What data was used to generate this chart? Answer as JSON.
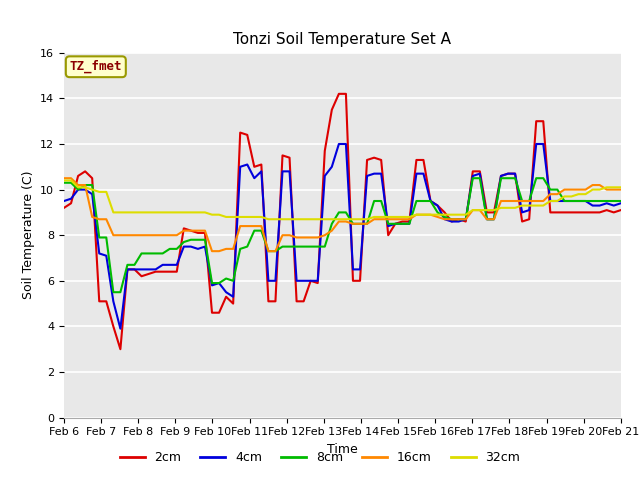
{
  "title": "Tonzi Soil Temperature Set A",
  "xlabel": "Time",
  "ylabel": "Soil Temperature (C)",
  "annotation": "TZ_fmet",
  "ylim": [
    0,
    16
  ],
  "yticks": [
    0,
    2,
    4,
    6,
    8,
    10,
    12,
    14,
    16
  ],
  "colors": {
    "2cm": "#dd0000",
    "4cm": "#0000dd",
    "8cm": "#00bb00",
    "16cm": "#ff8800",
    "32cm": "#dddd00"
  },
  "plot_bg": "#e8e8e8",
  "fig_bg": "#ffffff",
  "x_labels": [
    "Feb 6",
    "Feb 7",
    "Feb 8",
    "Feb 9",
    "Feb 10",
    "Feb 11",
    "Feb 12",
    "Feb 13",
    "Feb 14",
    "Feb 15",
    "Feb 16",
    "Feb 17",
    "Feb 18",
    "Feb 19",
    "Feb 20",
    "Feb 21"
  ],
  "series": {
    "2cm": [
      9.2,
      9.4,
      10.6,
      10.8,
      10.5,
      5.1,
      5.1,
      4.0,
      3.0,
      6.5,
      6.5,
      6.2,
      6.3,
      6.4,
      6.4,
      6.4,
      6.4,
      8.3,
      8.2,
      8.1,
      8.1,
      4.6,
      4.6,
      5.3,
      5.0,
      12.5,
      12.4,
      11.0,
      11.1,
      5.1,
      5.1,
      11.5,
      11.4,
      5.1,
      5.1,
      6.0,
      5.9,
      11.7,
      13.5,
      14.2,
      14.2,
      6.0,
      6.0,
      11.3,
      11.4,
      11.3,
      8.0,
      8.5,
      8.6,
      8.6,
      11.3,
      11.3,
      9.5,
      9.3,
      9.0,
      8.6,
      8.7,
      8.6,
      10.8,
      10.8,
      9.0,
      9.0,
      10.6,
      10.7,
      10.7,
      8.6,
      8.7,
      13.0,
      13.0,
      9.0,
      9.0,
      9.0,
      9.0,
      9.0,
      9.0,
      9.0,
      9.0,
      9.1,
      9.0,
      9.1
    ],
    "4cm": [
      9.5,
      9.6,
      10.0,
      10.0,
      9.8,
      7.2,
      7.1,
      5.1,
      3.9,
      6.5,
      6.5,
      6.5,
      6.5,
      6.5,
      6.7,
      6.7,
      6.7,
      7.5,
      7.5,
      7.4,
      7.5,
      5.8,
      5.9,
      5.5,
      5.3,
      11.0,
      11.1,
      10.5,
      10.8,
      6.0,
      6.0,
      10.8,
      10.8,
      6.0,
      6.0,
      6.0,
      6.0,
      10.6,
      11.0,
      12.0,
      12.0,
      6.5,
      6.5,
      10.6,
      10.7,
      10.7,
      8.4,
      8.5,
      8.5,
      8.5,
      10.7,
      10.7,
      9.5,
      9.3,
      8.7,
      8.6,
      8.6,
      8.7,
      10.6,
      10.7,
      8.7,
      8.7,
      10.6,
      10.7,
      10.7,
      9.0,
      9.1,
      12.0,
      12.0,
      9.5,
      9.5,
      9.5,
      9.5,
      9.5,
      9.5,
      9.3,
      9.3,
      9.4,
      9.3,
      9.4
    ],
    "8cm": [
      10.3,
      10.3,
      10.0,
      10.2,
      10.2,
      7.9,
      7.9,
      5.5,
      5.5,
      6.7,
      6.7,
      7.2,
      7.2,
      7.2,
      7.2,
      7.4,
      7.4,
      7.7,
      7.8,
      7.8,
      7.8,
      5.9,
      5.9,
      6.1,
      6.0,
      7.4,
      7.5,
      8.2,
      8.2,
      7.3,
      7.3,
      7.5,
      7.5,
      7.5,
      7.5,
      7.5,
      7.5,
      7.5,
      8.5,
      9.0,
      9.0,
      8.5,
      8.5,
      8.5,
      9.5,
      9.5,
      8.5,
      8.5,
      8.5,
      8.5,
      9.5,
      9.5,
      9.5,
      9.0,
      8.8,
      8.7,
      8.7,
      8.7,
      10.5,
      10.5,
      8.7,
      8.7,
      10.5,
      10.5,
      10.5,
      9.5,
      9.5,
      10.5,
      10.5,
      10.0,
      10.0,
      9.5,
      9.5,
      9.5,
      9.5,
      9.5,
      9.5,
      9.5,
      9.5,
      9.5
    ],
    "16cm": [
      10.5,
      10.5,
      10.2,
      10.2,
      8.8,
      8.7,
      8.7,
      8.0,
      8.0,
      8.0,
      8.0,
      8.0,
      8.0,
      8.0,
      8.0,
      8.0,
      8.0,
      8.2,
      8.2,
      8.2,
      8.2,
      7.3,
      7.3,
      7.4,
      7.4,
      8.4,
      8.4,
      8.4,
      8.4,
      7.3,
      7.3,
      8.0,
      8.0,
      7.9,
      7.9,
      7.9,
      7.9,
      8.0,
      8.2,
      8.6,
      8.6,
      8.5,
      8.5,
      8.5,
      8.7,
      8.7,
      8.7,
      8.7,
      8.7,
      8.7,
      8.9,
      8.9,
      8.9,
      8.8,
      8.7,
      8.7,
      8.7,
      8.7,
      9.1,
      9.1,
      8.7,
      8.7,
      9.5,
      9.5,
      9.5,
      9.5,
      9.5,
      9.5,
      9.5,
      9.8,
      9.8,
      10.0,
      10.0,
      10.0,
      10.0,
      10.2,
      10.2,
      10.0,
      10.0,
      10.0
    ],
    "32cm": [
      10.4,
      10.4,
      10.1,
      10.1,
      10.0,
      9.9,
      9.9,
      9.0,
      9.0,
      9.0,
      9.0,
      9.0,
      9.0,
      9.0,
      9.0,
      9.0,
      9.0,
      9.0,
      9.0,
      9.0,
      9.0,
      8.9,
      8.9,
      8.8,
      8.8,
      8.8,
      8.8,
      8.8,
      8.8,
      8.7,
      8.7,
      8.7,
      8.7,
      8.7,
      8.7,
      8.7,
      8.7,
      8.7,
      8.7,
      8.7,
      8.7,
      8.7,
      8.7,
      8.7,
      8.8,
      8.8,
      8.8,
      8.8,
      8.8,
      8.8,
      8.9,
      8.9,
      8.9,
      8.9,
      8.9,
      8.9,
      8.9,
      8.9,
      9.1,
      9.1,
      9.1,
      9.1,
      9.2,
      9.2,
      9.2,
      9.3,
      9.3,
      9.3,
      9.3,
      9.5,
      9.5,
      9.7,
      9.7,
      9.8,
      9.8,
      10.0,
      10.0,
      10.1,
      10.1,
      10.1
    ]
  },
  "title_fontsize": 11,
  "axis_label_fontsize": 9,
  "tick_fontsize": 8,
  "legend_fontsize": 9,
  "annotation_fontsize": 9,
  "linewidth": 1.5
}
